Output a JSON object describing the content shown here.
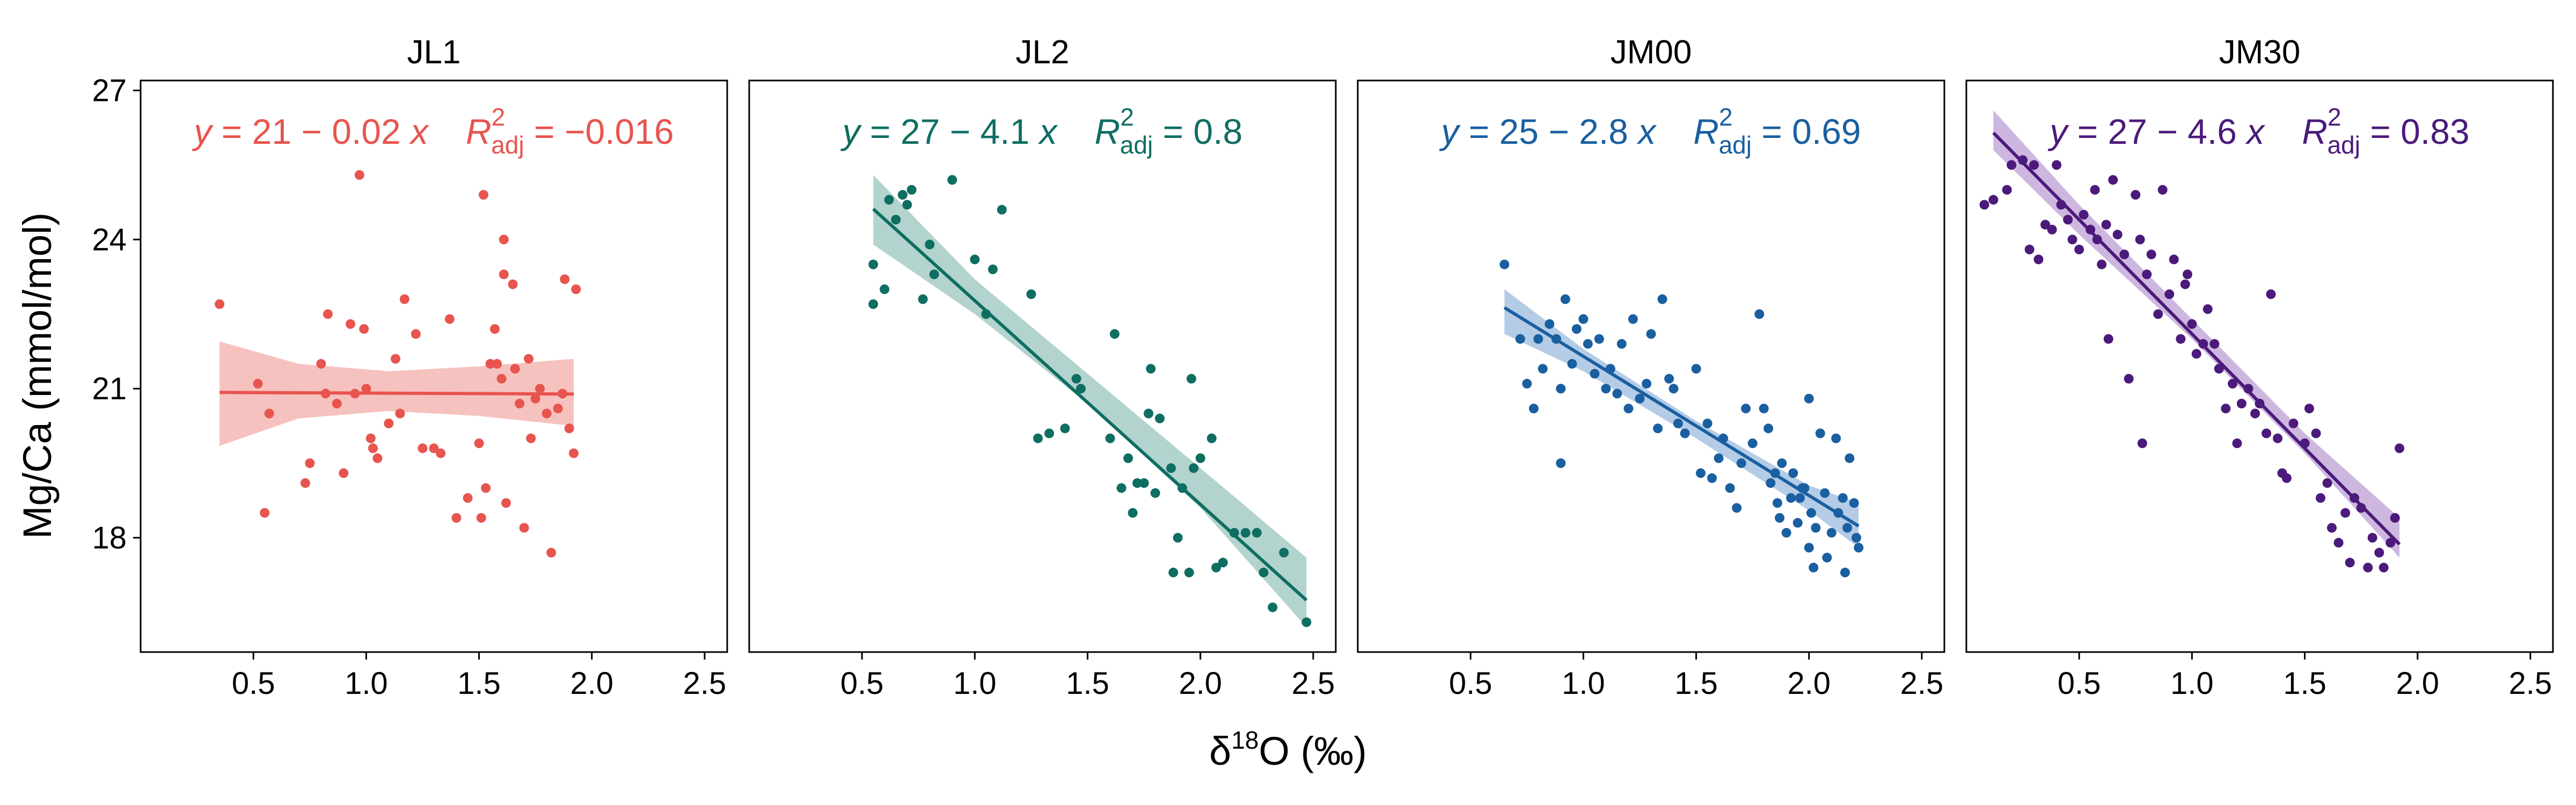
{
  "figure": {
    "ylabel": "Mg/Ca (mmol/mol)",
    "xlabel_prefix": "δ",
    "xlabel_sup": "18",
    "xlabel_suffix": "O (‰)"
  },
  "chart_data": [
    {
      "type": "scatter",
      "title": "JL1",
      "color": "#e8544e",
      "band_color": "#f4b7b4",
      "xlim": [
        0,
        2.6
      ],
      "ylim": [
        15.7,
        27.2
      ],
      "xticks": [
        0.5,
        1.0,
        1.5,
        2.0,
        2.5
      ],
      "xtick_labels": [
        "0.5",
        "1.0",
        "1.5",
        "2.0",
        "2.5"
      ],
      "yticks": [
        18,
        21,
        24,
        27
      ],
      "ytick_labels": [
        "18",
        "21",
        "24",
        "27"
      ],
      "equation": {
        "lhs": "y",
        "rhs": " = 21 − 0.02 ",
        "var": "x",
        "r2_label": "R",
        "r2_sup": "2",
        "r2_sub": "adj",
        "r2_value": " = −0.016"
      },
      "fit": {
        "intercept": 20.93,
        "slope": -0.02,
        "x_range": [
          0.35,
          1.92
        ]
      },
      "band": {
        "x": [
          0.35,
          0.7,
          1.1,
          1.5,
          1.92
        ],
        "lower": [
          19.85,
          20.4,
          20.55,
          20.45,
          20.25
        ],
        "upper": [
          21.95,
          21.5,
          21.35,
          21.45,
          21.6
        ]
      },
      "points": [
        [
          0.35,
          22.7
        ],
        [
          0.52,
          21.1
        ],
        [
          0.55,
          18.5
        ],
        [
          0.57,
          20.5
        ],
        [
          0.73,
          19.1
        ],
        [
          0.75,
          19.5
        ],
        [
          0.8,
          21.5
        ],
        [
          0.82,
          20.9
        ],
        [
          0.83,
          22.5
        ],
        [
          0.87,
          20.7
        ],
        [
          0.9,
          19.3
        ],
        [
          0.93,
          22.3
        ],
        [
          0.95,
          20.9
        ],
        [
          0.97,
          25.3
        ],
        [
          0.99,
          22.2
        ],
        [
          1.0,
          21.0
        ],
        [
          1.02,
          20.0
        ],
        [
          1.03,
          19.8
        ],
        [
          1.05,
          19.6
        ],
        [
          1.1,
          20.3
        ],
        [
          1.13,
          21.6
        ],
        [
          1.15,
          20.5
        ],
        [
          1.17,
          22.8
        ],
        [
          1.22,
          22.1
        ],
        [
          1.25,
          19.8
        ],
        [
          1.3,
          19.8
        ],
        [
          1.33,
          19.7
        ],
        [
          1.37,
          22.4
        ],
        [
          1.4,
          18.4
        ],
        [
          1.45,
          18.8
        ],
        [
          1.5,
          19.9
        ],
        [
          1.51,
          18.4
        ],
        [
          1.52,
          24.9
        ],
        [
          1.53,
          19.0
        ],
        [
          1.55,
          21.5
        ],
        [
          1.57,
          22.2
        ],
        [
          1.58,
          21.5
        ],
        [
          1.6,
          21.2
        ],
        [
          1.61,
          24.0
        ],
        [
          1.61,
          23.3
        ],
        [
          1.62,
          18.7
        ],
        [
          1.65,
          23.1
        ],
        [
          1.66,
          21.4
        ],
        [
          1.68,
          20.7
        ],
        [
          1.7,
          18.2
        ],
        [
          1.72,
          21.6
        ],
        [
          1.73,
          20.0
        ],
        [
          1.75,
          20.8
        ],
        [
          1.77,
          21.0
        ],
        [
          1.8,
          20.5
        ],
        [
          1.82,
          17.7
        ],
        [
          1.85,
          20.6
        ],
        [
          1.87,
          20.9
        ],
        [
          1.88,
          23.2
        ],
        [
          1.9,
          20.2
        ],
        [
          1.92,
          19.7
        ],
        [
          1.93,
          23.0
        ]
      ]
    },
    {
      "type": "scatter",
      "title": "JL2",
      "color": "#0e6e62",
      "band_color": "#a6cbc5",
      "xlim": [
        0,
        2.6
      ],
      "ylim": [
        15.7,
        27.2
      ],
      "xticks": [
        0.5,
        1.0,
        1.5,
        2.0,
        2.5
      ],
      "xtick_labels": [
        "0.5",
        "1.0",
        "1.5",
        "2.0",
        "2.5"
      ],
      "yticks": [
        18,
        21,
        24,
        27
      ],
      "ytick_labels": [
        "18",
        "21",
        "24",
        "27"
      ],
      "equation": {
        "lhs": "y",
        "rhs": " = 27 − 4.1 ",
        "var": "x",
        "r2_label": "R",
        "r2_sup": "2",
        "r2_sub": "adj",
        "r2_value": " = 0.8"
      },
      "fit": {
        "intercept": 26.87,
        "slope": -4.1,
        "x_range": [
          0.55,
          2.47
        ]
      },
      "band": {
        "x": [
          0.55,
          1.0,
          1.5,
          2.0,
          2.47
        ],
        "lower": [
          23.9,
          22.5,
          20.7,
          18.6,
          16.2
        ],
        "upper": [
          25.3,
          23.2,
          21.3,
          19.4,
          17.6
        ]
      },
      "points": [
        [
          0.55,
          22.7
        ],
        [
          0.55,
          23.5
        ],
        [
          0.6,
          23.0
        ],
        [
          0.62,
          24.8
        ],
        [
          0.65,
          24.4
        ],
        [
          0.68,
          24.9
        ],
        [
          0.7,
          24.7
        ],
        [
          0.72,
          25.0
        ],
        [
          0.77,
          22.8
        ],
        [
          0.8,
          23.9
        ],
        [
          0.82,
          23.3
        ],
        [
          0.9,
          25.2
        ],
        [
          1.0,
          23.6
        ],
        [
          1.05,
          22.5
        ],
        [
          1.08,
          23.4
        ],
        [
          1.12,
          24.6
        ],
        [
          1.25,
          22.9
        ],
        [
          1.28,
          20.0
        ],
        [
          1.33,
          20.1
        ],
        [
          1.4,
          20.2
        ],
        [
          1.45,
          21.2
        ],
        [
          1.47,
          21.0
        ],
        [
          1.6,
          20.0
        ],
        [
          1.62,
          22.1
        ],
        [
          1.65,
          19.0
        ],
        [
          1.68,
          19.6
        ],
        [
          1.7,
          18.5
        ],
        [
          1.72,
          19.1
        ],
        [
          1.75,
          19.1
        ],
        [
          1.77,
          20.5
        ],
        [
          1.78,
          21.4
        ],
        [
          1.8,
          18.9
        ],
        [
          1.82,
          20.4
        ],
        [
          1.87,
          19.4
        ],
        [
          1.88,
          17.3
        ],
        [
          1.9,
          18.0
        ],
        [
          1.92,
          19.0
        ],
        [
          1.95,
          17.3
        ],
        [
          1.96,
          21.2
        ],
        [
          1.97,
          19.4
        ],
        [
          2.0,
          19.6
        ],
        [
          2.05,
          20.0
        ],
        [
          2.07,
          17.4
        ],
        [
          2.1,
          17.5
        ],
        [
          2.15,
          18.1
        ],
        [
          2.2,
          18.1
        ],
        [
          2.25,
          18.1
        ],
        [
          2.28,
          17.3
        ],
        [
          2.32,
          16.6
        ],
        [
          2.37,
          17.7
        ],
        [
          2.47,
          16.3
        ]
      ]
    },
    {
      "type": "scatter",
      "title": "JM00",
      "color": "#1a5fa0",
      "band_color": "#a7c3e2",
      "xlim": [
        0,
        2.6
      ],
      "ylim": [
        15.7,
        27.2
      ],
      "xticks": [
        0.5,
        1.0,
        1.5,
        2.0,
        2.5
      ],
      "xtick_labels": [
        "0.5",
        "1.0",
        "1.5",
        "2.0",
        "2.5"
      ],
      "yticks": [
        18,
        21,
        24,
        27
      ],
      "ytick_labels": [
        "18",
        "21",
        "24",
        "27"
      ],
      "equation": {
        "lhs": "y",
        "rhs": " = 25 − 2.8 ",
        "var": "x",
        "r2_label": "R",
        "r2_sup": "2",
        "r2_sub": "adj",
        "r2_value": " = 0.69"
      },
      "fit": {
        "intercept": 24.45,
        "slope": -2.8,
        "x_range": [
          0.65,
          2.22
        ]
      },
      "band": {
        "x": [
          0.65,
          1.0,
          1.5,
          2.0,
          2.22
        ],
        "lower": [
          22.1,
          21.35,
          20.0,
          18.55,
          17.8
        ],
        "upper": [
          23.0,
          21.8,
          20.35,
          19.05,
          18.7
        ]
      },
      "points": [
        [
          0.65,
          23.5
        ],
        [
          0.72,
          22.0
        ],
        [
          0.75,
          21.1
        ],
        [
          0.78,
          20.6
        ],
        [
          0.8,
          22.0
        ],
        [
          0.82,
          21.4
        ],
        [
          0.85,
          22.3
        ],
        [
          0.88,
          22.0
        ],
        [
          0.9,
          19.5
        ],
        [
          0.9,
          21.0
        ],
        [
          0.92,
          22.8
        ],
        [
          0.95,
          21.5
        ],
        [
          0.97,
          22.2
        ],
        [
          1.0,
          22.4
        ],
        [
          1.02,
          21.9
        ],
        [
          1.05,
          21.3
        ],
        [
          1.07,
          22.0
        ],
        [
          1.1,
          21.0
        ],
        [
          1.12,
          21.4
        ],
        [
          1.15,
          20.9
        ],
        [
          1.17,
          21.9
        ],
        [
          1.2,
          20.6
        ],
        [
          1.22,
          22.4
        ],
        [
          1.25,
          20.8
        ],
        [
          1.28,
          21.1
        ],
        [
          1.3,
          22.1
        ],
        [
          1.33,
          20.2
        ],
        [
          1.35,
          22.8
        ],
        [
          1.38,
          21.2
        ],
        [
          1.4,
          21.0
        ],
        [
          1.42,
          20.3
        ],
        [
          1.45,
          20.1
        ],
        [
          1.5,
          21.4
        ],
        [
          1.52,
          19.3
        ],
        [
          1.55,
          20.3
        ],
        [
          1.57,
          19.2
        ],
        [
          1.6,
          19.6
        ],
        [
          1.62,
          20.0
        ],
        [
          1.65,
          19.0
        ],
        [
          1.68,
          18.6
        ],
        [
          1.7,
          19.5
        ],
        [
          1.72,
          20.6
        ],
        [
          1.75,
          19.9
        ],
        [
          1.78,
          22.5
        ],
        [
          1.8,
          20.6
        ],
        [
          1.82,
          20.2
        ],
        [
          1.83,
          19.1
        ],
        [
          1.85,
          19.3
        ],
        [
          1.86,
          18.7
        ],
        [
          1.87,
          18.4
        ],
        [
          1.88,
          19.5
        ],
        [
          1.9,
          18.1
        ],
        [
          1.92,
          18.8
        ],
        [
          1.93,
          19.3
        ],
        [
          1.95,
          18.3
        ],
        [
          1.96,
          18.8
        ],
        [
          1.97,
          19.0
        ],
        [
          1.98,
          19.0
        ],
        [
          2.0,
          20.8
        ],
        [
          2.0,
          17.8
        ],
        [
          2.01,
          18.5
        ],
        [
          2.02,
          17.4
        ],
        [
          2.03,
          18.2
        ],
        [
          2.05,
          20.1
        ],
        [
          2.07,
          18.9
        ],
        [
          2.08,
          17.6
        ],
        [
          2.1,
          18.1
        ],
        [
          2.12,
          20.0
        ],
        [
          2.13,
          18.5
        ],
        [
          2.15,
          18.8
        ],
        [
          2.16,
          17.3
        ],
        [
          2.17,
          18.2
        ],
        [
          2.18,
          19.6
        ],
        [
          2.2,
          18.7
        ],
        [
          2.21,
          18.0
        ],
        [
          2.22,
          17.8
        ]
      ]
    },
    {
      "type": "scatter",
      "title": "JM30",
      "color": "#4b1a7a",
      "band_color": "#c4aad9",
      "xlim": [
        0,
        2.6
      ],
      "ylim": [
        15.7,
        27.2
      ],
      "xticks": [
        0.5,
        1.0,
        1.5,
        2.0,
        2.5
      ],
      "xtick_labels": [
        "0.5",
        "1.0",
        "1.5",
        "2.0",
        "2.5"
      ],
      "yticks": [
        18,
        21,
        24,
        27
      ],
      "ytick_labels": [
        "18",
        "21",
        "24",
        "27"
      ],
      "equation": {
        "lhs": "y",
        "rhs": " = 27 − 4.6 ",
        "var": "x",
        "r2_label": "R",
        "r2_sup": "2",
        "r2_sub": "adj",
        "r2_value": " = 0.83"
      },
      "fit": {
        "intercept": 26.7,
        "slope": -4.6,
        "x_range": [
          0.12,
          1.92
        ]
      },
      "band": {
        "x": [
          0.12,
          0.5,
          1.0,
          1.5,
          1.92
        ],
        "lower": [
          25.8,
          24.1,
          22.0,
          19.7,
          17.6
        ],
        "upper": [
          26.6,
          24.7,
          22.4,
          20.1,
          18.4
        ]
      },
      "points": [
        [
          0.08,
          24.7
        ],
        [
          0.12,
          24.8
        ],
        [
          0.18,
          25.0
        ],
        [
          0.2,
          25.5
        ],
        [
          0.25,
          25.6
        ],
        [
          0.28,
          23.8
        ],
        [
          0.3,
          25.5
        ],
        [
          0.32,
          23.6
        ],
        [
          0.35,
          24.3
        ],
        [
          0.38,
          24.2
        ],
        [
          0.4,
          25.5
        ],
        [
          0.42,
          24.7
        ],
        [
          0.45,
          24.4
        ],
        [
          0.47,
          24.0
        ],
        [
          0.5,
          23.8
        ],
        [
          0.52,
          24.5
        ],
        [
          0.55,
          24.2
        ],
        [
          0.57,
          25.0
        ],
        [
          0.58,
          24.0
        ],
        [
          0.6,
          23.5
        ],
        [
          0.62,
          24.3
        ],
        [
          0.63,
          22.0
        ],
        [
          0.65,
          25.2
        ],
        [
          0.67,
          24.1
        ],
        [
          0.7,
          23.7
        ],
        [
          0.72,
          21.2
        ],
        [
          0.75,
          24.9
        ],
        [
          0.77,
          24.0
        ],
        [
          0.78,
          19.9
        ],
        [
          0.8,
          23.3
        ],
        [
          0.82,
          23.7
        ],
        [
          0.85,
          22.5
        ],
        [
          0.87,
          25.0
        ],
        [
          0.9,
          22.9
        ],
        [
          0.92,
          23.6
        ],
        [
          0.95,
          22.0
        ],
        [
          0.97,
          23.1
        ],
        [
          0.98,
          23.3
        ],
        [
          1.0,
          22.3
        ],
        [
          1.02,
          21.7
        ],
        [
          1.05,
          21.9
        ],
        [
          1.07,
          22.6
        ],
        [
          1.1,
          21.9
        ],
        [
          1.12,
          21.4
        ],
        [
          1.15,
          20.6
        ],
        [
          1.18,
          21.1
        ],
        [
          1.2,
          19.9
        ],
        [
          1.22,
          20.7
        ],
        [
          1.25,
          21.0
        ],
        [
          1.28,
          20.5
        ],
        [
          1.3,
          20.7
        ],
        [
          1.33,
          20.1
        ],
        [
          1.35,
          22.9
        ],
        [
          1.38,
          20.0
        ],
        [
          1.4,
          19.3
        ],
        [
          1.42,
          19.2
        ],
        [
          1.45,
          20.3
        ],
        [
          1.5,
          19.9
        ],
        [
          1.52,
          20.6
        ],
        [
          1.55,
          20.1
        ],
        [
          1.57,
          18.8
        ],
        [
          1.6,
          19.1
        ],
        [
          1.62,
          18.2
        ],
        [
          1.65,
          17.9
        ],
        [
          1.68,
          18.5
        ],
        [
          1.7,
          17.5
        ],
        [
          1.72,
          18.8
        ],
        [
          1.75,
          18.6
        ],
        [
          1.78,
          17.4
        ],
        [
          1.8,
          18.0
        ],
        [
          1.83,
          17.7
        ],
        [
          1.85,
          17.4
        ],
        [
          1.88,
          17.9
        ],
        [
          1.9,
          18.4
        ],
        [
          1.92,
          19.8
        ]
      ]
    }
  ]
}
